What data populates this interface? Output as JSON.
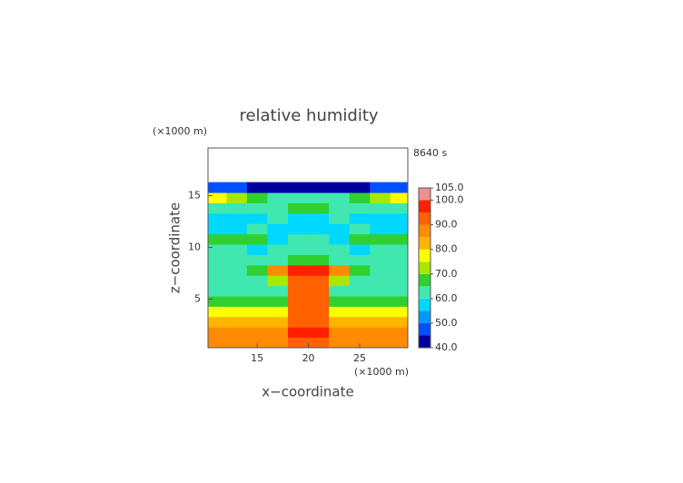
{
  "chart_data": {
    "type": "contour",
    "title": "relative humidity",
    "time_label": "8640 s",
    "x_label": "x−coordinate",
    "y_label": "z−coordinate",
    "x_unit": "(×1000 m)",
    "y_unit": "(×1000 m)",
    "xlim": [
      10.2,
      29.7
    ],
    "ylim": [
      0.3,
      19.6
    ],
    "xticks": [
      15,
      20,
      25
    ],
    "yticks": [
      5,
      10,
      15
    ],
    "x": [
      11,
      13,
      15,
      17,
      19,
      21,
      23,
      25,
      27,
      29
    ],
    "y": [
      0.8,
      1.8,
      2.8,
      3.8,
      4.8,
      5.8,
      6.8,
      7.8,
      8.8,
      9.8,
      10.8,
      11.8,
      12.8,
      13.8,
      14.8,
      15.8
    ],
    "z": [
      [
        86,
        86,
        86,
        86,
        92,
        92,
        86,
        86,
        86,
        86
      ],
      [
        86,
        86,
        86,
        86,
        95,
        95,
        86,
        86,
        86,
        86
      ],
      [
        84,
        84,
        84,
        84,
        94,
        94,
        84,
        84,
        84,
        84
      ],
      [
        77,
        77,
        77,
        78,
        92,
        92,
        78,
        77,
        77,
        77
      ],
      [
        67,
        67,
        67,
        68,
        93,
        93,
        68,
        67,
        67,
        67
      ],
      [
        63,
        63,
        63,
        64,
        92,
        92,
        64,
        63,
        63,
        63
      ],
      [
        62,
        62,
        63,
        70,
        94,
        94,
        70,
        63,
        62,
        62
      ],
      [
        64,
        64,
        66,
        88,
        96,
        96,
        88,
        66,
        64,
        64
      ],
      [
        61,
        60,
        60,
        63,
        65,
        65,
        63,
        60,
        60,
        61
      ],
      [
        62,
        60,
        58,
        62,
        60,
        60,
        62,
        58,
        60,
        62
      ],
      [
        66,
        68,
        66,
        58,
        62,
        62,
        58,
        66,
        68,
        66
      ],
      [
        58,
        58,
        62,
        56,
        58,
        58,
        56,
        62,
        58,
        58
      ],
      [
        57,
        56,
        57,
        60,
        56,
        56,
        60,
        57,
        56,
        57
      ],
      [
        62,
        62,
        63,
        64,
        66,
        66,
        64,
        63,
        62,
        62
      ],
      [
        78,
        72,
        66,
        64,
        63,
        63,
        64,
        66,
        72,
        78
      ],
      [
        48,
        46,
        44,
        42,
        42,
        42,
        42,
        44,
        46,
        48
      ]
    ],
    "levels": [
      40,
      45,
      50,
      55,
      60,
      65,
      70,
      75,
      80,
      85,
      90,
      95,
      100,
      105
    ],
    "colors": [
      "#0000a0",
      "#0050ff",
      "#0098ff",
      "#00d8ff",
      "#40e8b0",
      "#30d030",
      "#a8e800",
      "#ffff00",
      "#ffb400",
      "#ff8c00",
      "#ff6000",
      "#ff2000",
      "#f09090"
    ],
    "colorbar_ticks": [
      {
        "value": 105,
        "label": "105.0"
      },
      {
        "value": 100,
        "label": "100.0"
      },
      {
        "value": 90,
        "label": "90.0"
      },
      {
        "value": 80,
        "label": "80.0"
      },
      {
        "value": 70,
        "label": "70.0"
      },
      {
        "value": 60,
        "label": "60.0"
      },
      {
        "value": 50,
        "label": "50.0"
      },
      {
        "value": 40,
        "label": "40.0"
      }
    ]
  }
}
